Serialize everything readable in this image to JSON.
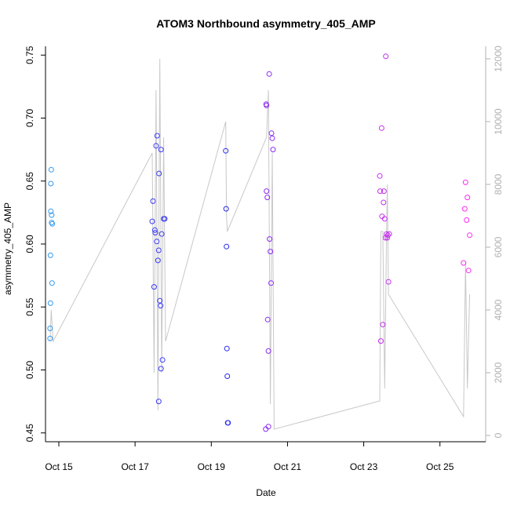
{
  "chart_data": {
    "type": "scatter",
    "title": "ATOM3 Northbound asymmetry_405_AMP",
    "xlabel": "Date",
    "ylabel": "asymmetry_405_AMP",
    "x_ticks": [
      "Oct 15",
      "Oct 17",
      "Oct 19",
      "Oct 21",
      "Oct 23",
      "Oct 25"
    ],
    "x_tick_days": [
      15,
      17,
      19,
      21,
      23,
      25
    ],
    "xlim": [
      14.65,
      26.2
    ],
    "ylim": [
      0.443,
      0.757
    ],
    "y_ticks": [
      "0.45",
      "0.50",
      "0.55",
      "0.60",
      "0.65",
      "0.70",
      "0.75"
    ],
    "y_tick_values": [
      0.45,
      0.5,
      0.55,
      0.6,
      0.65,
      0.7,
      0.75
    ],
    "y2_ticks": [
      "0",
      "2000",
      "4000",
      "6000",
      "8000",
      "10000",
      "12000"
    ],
    "y2_tick_values": [
      0,
      2000,
      4000,
      6000,
      8000,
      10000,
      12000
    ],
    "y2lim": [
      -200,
      12400
    ],
    "grid": false,
    "colors": {
      "line": "#c8c8c8",
      "axis": "#000000",
      "axis2": "#b0b0b0",
      "gradient_start": "#3399ee",
      "gradient_mid": "#3333ff",
      "gradient_mid2": "#9933ee",
      "gradient_end": "#ff33ff"
    },
    "series": [
      {
        "x": [
          14.77,
          14.77,
          14.78,
          14.78,
          14.79,
          14.79,
          14.8,
          14.81,
          14.81,
          14.82,
          14.83
        ],
        "y": [
          0.525,
          0.533,
          0.553,
          0.591,
          0.626,
          0.648,
          0.659,
          0.623,
          0.617,
          0.569,
          0.616
        ],
        "color": "#3399ee"
      },
      {
        "x": [
          17.45,
          17.47,
          17.5,
          17.52,
          17.53,
          17.55,
          17.57,
          17.58,
          17.6,
          17.62,
          17.63,
          17.65,
          17.67,
          17.68,
          17.7,
          17.72,
          17.75,
          17.78,
          17.62,
          17.68
        ],
        "y": [
          0.618,
          0.634,
          0.566,
          0.611,
          0.609,
          0.678,
          0.602,
          0.686,
          0.587,
          0.595,
          0.656,
          0.555,
          0.551,
          0.675,
          0.608,
          0.508,
          0.62,
          0.62,
          0.475,
          0.501
        ],
        "color": "#3b3bf8"
      },
      {
        "x": [
          19.38,
          19.39,
          19.4,
          19.41,
          19.42,
          19.43,
          19.44
        ],
        "y": [
          0.674,
          0.628,
          0.598,
          0.517,
          0.495,
          0.458,
          0.458
        ],
        "color": "#2a2af0"
      },
      {
        "x": [
          20.43,
          20.44,
          20.45,
          20.47,
          20.48,
          20.5,
          20.52,
          20.53,
          20.55,
          20.57,
          20.58,
          20.6,
          20.62,
          20.45,
          20.5
        ],
        "y": [
          0.453,
          0.711,
          0.71,
          0.637,
          0.54,
          0.515,
          0.735,
          0.604,
          0.594,
          0.569,
          0.688,
          0.684,
          0.675,
          0.642,
          0.455
        ],
        "color": "#8a2cf2"
      },
      {
        "x": [
          23.42,
          23.43,
          23.45,
          23.47,
          23.48,
          23.5,
          23.52,
          23.53,
          23.55,
          23.57,
          23.58,
          23.6,
          23.62,
          23.63,
          23.65,
          23.67
        ],
        "y": [
          0.654,
          0.642,
          0.523,
          0.692,
          0.622,
          0.536,
          0.633,
          0.642,
          0.62,
          0.605,
          0.749,
          0.608,
          0.605,
          0.607,
          0.57,
          0.608
        ],
        "color": "#c52ff0"
      },
      {
        "x": [
          25.62,
          25.65,
          25.67,
          25.7,
          25.72,
          25.75,
          25.78
        ],
        "y": [
          0.585,
          0.628,
          0.649,
          0.619,
          0.637,
          0.579,
          0.607
        ],
        "color": "#ff2cf2"
      }
    ],
    "count_line": {
      "x": [
        14.77,
        14.8,
        14.85,
        17.45,
        17.5,
        17.55,
        17.6,
        17.65,
        17.7,
        17.75,
        17.8,
        19.38,
        19.4,
        19.42,
        20.45,
        20.5,
        20.55,
        20.6,
        20.65,
        23.42,
        23.45,
        23.5,
        23.55,
        23.6,
        23.62,
        23.65,
        25.62,
        25.67,
        25.72,
        25.78
      ],
      "y": [
        3000,
        4000,
        3000,
        9000,
        2000,
        11000,
        800,
        12000,
        2000,
        9500,
        3000,
        10000,
        7000,
        6500,
        9500,
        11000,
        1000,
        9000,
        200,
        1100,
        6500,
        6500,
        1500,
        6500,
        8000,
        4500,
        600,
        5500,
        1500,
        4500
      ]
    }
  }
}
